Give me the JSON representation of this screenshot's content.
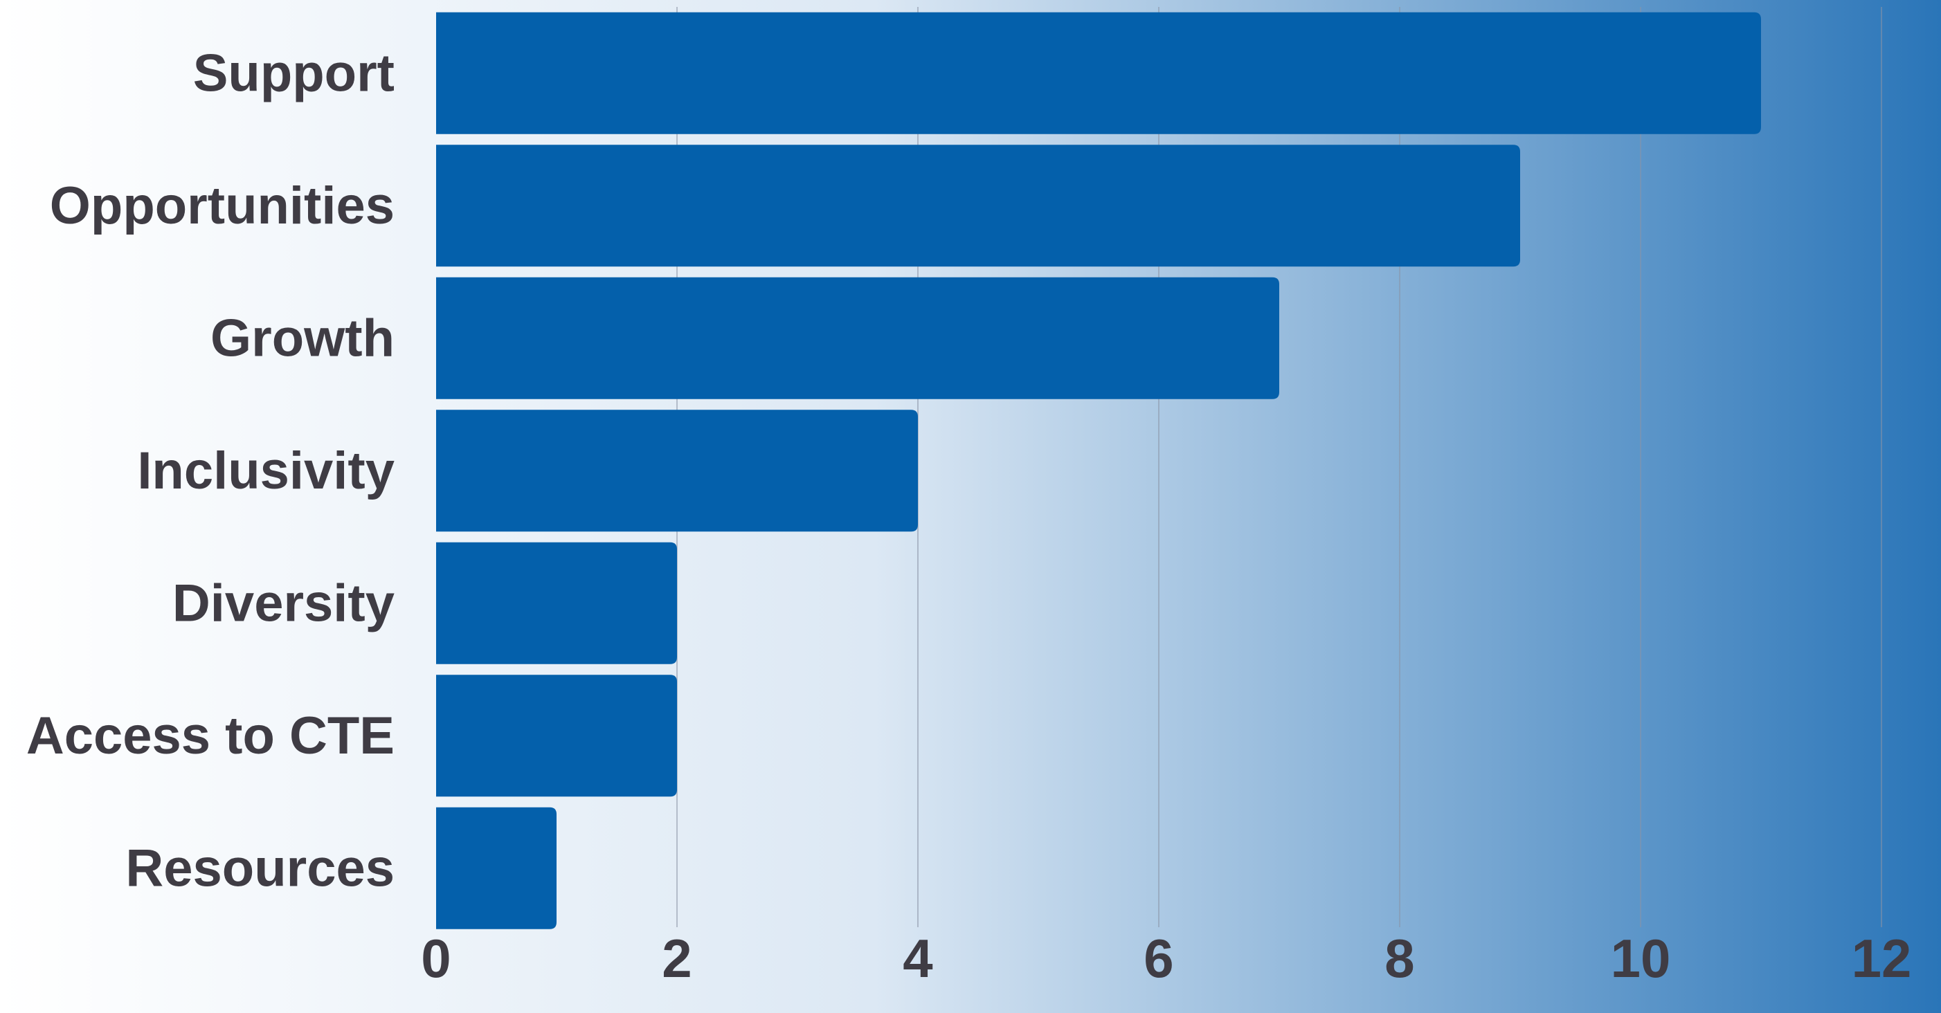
{
  "chart_data": {
    "type": "bar",
    "orientation": "horizontal",
    "categories": [
      "Support",
      "Opportunities",
      "Growth",
      "Inclusivity",
      "Diversity",
      "Access to CTE",
      "Resources"
    ],
    "values": [
      11,
      9,
      7,
      4,
      2,
      2,
      1
    ],
    "title": "",
    "xlabel": "",
    "ylabel": "",
    "xlim": [
      0,
      12
    ],
    "xticks": [
      0,
      2,
      4,
      6,
      8,
      10,
      12
    ],
    "xtick_labels": [
      "0",
      "2",
      "4",
      "6",
      "8",
      "10",
      "12"
    ],
    "grid": "vertical",
    "legend": "none",
    "colors": {
      "bar": "#0460ab",
      "text": "#3f3c44",
      "gridline": "#8a94a6",
      "background_start": "#ffffff",
      "background_end": "#2a75b8"
    }
  }
}
